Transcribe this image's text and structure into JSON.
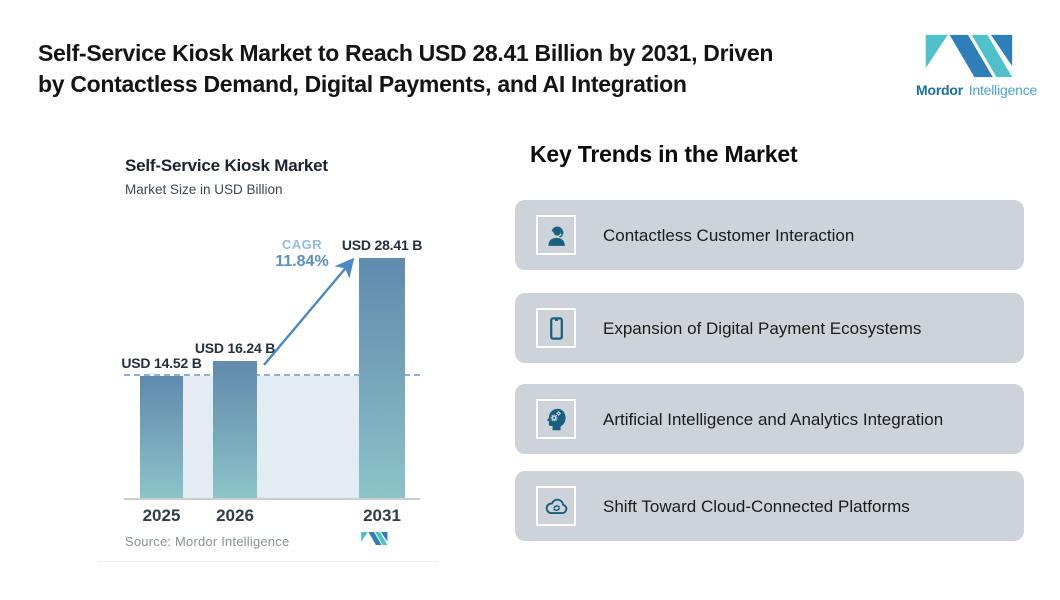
{
  "page": {
    "title_lines": [
      "Self-Service Kiosk Market to Reach USD 28.41 Billion by 2031, Driven",
      "by Contactless Demand, Digital Payments, and AI Integration"
    ]
  },
  "brand": {
    "name_bold": "Mordor",
    "name_light": "Intelligence",
    "colors": {
      "teal": "#4fc1cb",
      "blue": "#2e7fb9",
      "text_bold": "#1a6cab",
      "text_light": "#4aa5d9"
    }
  },
  "chart_data": {
    "type": "bar",
    "title": "Self-Service Kiosk Market",
    "subtitle": "Market Size in USD Billion",
    "categories": [
      "2025",
      "2026",
      "2031"
    ],
    "values": [
      14.52,
      16.24,
      28.41
    ],
    "value_labels": [
      "USD 14.52 B",
      "USD 16.24 B",
      "USD 28.41 B"
    ],
    "cagr_label": "CAGR",
    "cagr_value": "11.84%",
    "source": "Source: Mordor Intelligence",
    "ylim": [
      0,
      30
    ],
    "grid": false,
    "legend": "none",
    "annotations": {
      "dashed_reference_line": "horizontal dashed line at 2025 market-size level",
      "growth_arrow": "diagonal arrow from 2026 bar top to 2031 bar top"
    },
    "colors": {
      "bar_top": "#5f8bae",
      "bar_bottom": "#8cc4c8",
      "band": "#e3ecf3",
      "dash": "#8cb4d4",
      "arrow": "#4d88c3",
      "cagr_value": "#5a8ec6",
      "cagr_label": "#97b9da"
    }
  },
  "trends": {
    "heading": "Key Trends in the Market",
    "card_bg": "#cdd3d9",
    "icon_color": "#17607f",
    "items": [
      {
        "icon": "headset-person-icon",
        "label": "Contactless Customer Interaction"
      },
      {
        "icon": "smartphone-icon",
        "label": "Expansion of Digital Payment Ecosystems"
      },
      {
        "icon": "ai-head-gears-icon",
        "label": "Artificial Intelligence and Analytics Integration"
      },
      {
        "icon": "cloud-sync-icon",
        "label": "Shift Toward Cloud-Connected Platforms"
      }
    ]
  }
}
